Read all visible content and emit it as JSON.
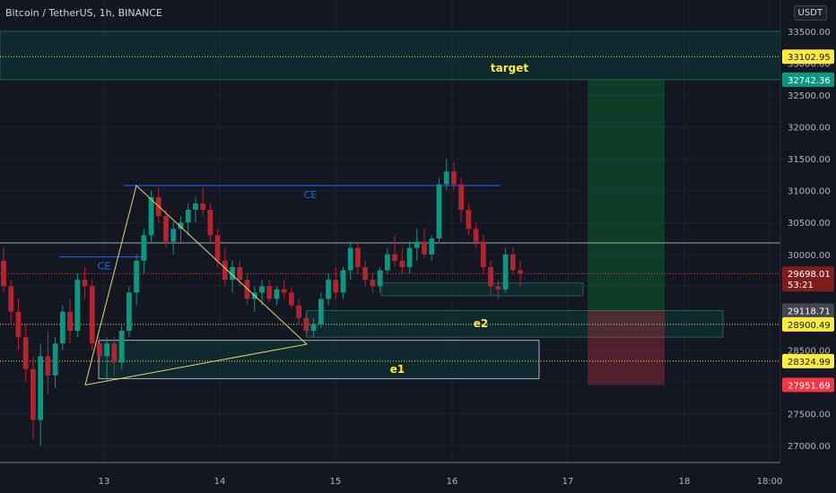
{
  "header": {
    "title": "Bitcoin / TetherUS, 1h, BINANCE",
    "currency": "USDT"
  },
  "chart_data": {
    "type": "candlestick",
    "x_ticks": [
      "13",
      "14",
      "15",
      "16",
      "17",
      "18",
      "18:00"
    ],
    "y_ticks": [
      "33500.00",
      "33000.00",
      "32500.00",
      "32000.00",
      "31500.00",
      "31000.00",
      "30500.00",
      "30000.00",
      "29500.00",
      "29000.00",
      "28500.00",
      "28000.00",
      "27500.00",
      "27000.00"
    ],
    "y_tick_values": [
      33500,
      33000,
      32500,
      32000,
      31500,
      31000,
      30500,
      30000,
      29500,
      29000,
      28500,
      28000,
      27500,
      27000
    ],
    "price_labels": [
      {
        "value": 33102.95,
        "text": "33102.95",
        "bg": "#ffeb3b",
        "fg": "#131722"
      },
      {
        "value": 32742.36,
        "text": "32742.36",
        "bg": "#089981",
        "fg": "#ffffff"
      },
      {
        "value": 29698.01,
        "text": "29698.01",
        "sub": "53:21",
        "bg": "#7f1d1d",
        "fg": "#ffffff"
      },
      {
        "value": 29118.71,
        "text": "29118.71",
        "bg": "#434651",
        "fg": "#ffffff"
      },
      {
        "value": 28900.49,
        "text": "28900.49",
        "bg": "#ffeb3b",
        "fg": "#131722"
      },
      {
        "value": 28324.99,
        "text": "28324.99",
        "bg": "#ffeb3b",
        "fg": "#131722"
      },
      {
        "value": 27951.69,
        "text": "27951.69",
        "bg": "#f23645",
        "fg": "#ffffff"
      }
    ],
    "zones": [
      {
        "label": "target",
        "price_top": 33500,
        "price_bottom": 32742.36
      },
      {
        "label": "e2",
        "price_top": 29118.71,
        "price_bottom": 28700
      },
      {
        "label": "e1",
        "price_top": 28650,
        "price_bottom": 28050
      },
      {
        "label": "",
        "price_top": 29550,
        "price_bottom": 29350
      }
    ],
    "annotations": [
      "CE",
      "CE",
      "target",
      "e2",
      "e1"
    ],
    "lines": {
      "ce_upper": 31080,
      "ce_lower": 29960,
      "horizontal_white": 30180,
      "current_price": 29698.01,
      "target_line": 33102.95,
      "e2_line": 28900.49,
      "e1_line": 28324.99
    },
    "position": {
      "entry": 29118.71,
      "target": 32742.36,
      "stop": 27951.69
    },
    "candles": [
      [
        29900,
        30100,
        29400,
        29500
      ],
      [
        29500,
        29600,
        28900,
        29100
      ],
      [
        29100,
        29300,
        28500,
        28700
      ],
      [
        28700,
        28900,
        28000,
        28200
      ],
      [
        28200,
        28400,
        27100,
        27400
      ],
      [
        27400,
        28600,
        27000,
        28400
      ],
      [
        28400,
        28800,
        27800,
        28100
      ],
      [
        28100,
        28700,
        27900,
        28600
      ],
      [
        28600,
        29200,
        28500,
        29100
      ],
      [
        29100,
        29300,
        28600,
        28800
      ],
      [
        28800,
        29700,
        28700,
        29600
      ],
      [
        29600,
        29800,
        29300,
        29500
      ],
      [
        29500,
        29600,
        28500,
        28600
      ],
      [
        28600,
        28700,
        28300,
        28400
      ],
      [
        28400,
        28700,
        28000,
        28600
      ],
      [
        28600,
        28700,
        28100,
        28300
      ],
      [
        28300,
        28900,
        28200,
        28800
      ],
      [
        28800,
        29500,
        28700,
        29400
      ],
      [
        29400,
        30000,
        29200,
        29900
      ],
      [
        29900,
        30400,
        29700,
        30300
      ],
      [
        30300,
        31000,
        30200,
        30900
      ],
      [
        30900,
        31050,
        30500,
        30600
      ],
      [
        30600,
        30700,
        30100,
        30200
      ],
      [
        30200,
        30500,
        30000,
        30400
      ],
      [
        30400,
        30600,
        30200,
        30500
      ],
      [
        30500,
        30800,
        30300,
        30700
      ],
      [
        30700,
        30900,
        30500,
        30800
      ],
      [
        30800,
        31050,
        30600,
        30700
      ],
      [
        30700,
        30800,
        30200,
        30300
      ],
      [
        30300,
        30400,
        29800,
        29900
      ],
      [
        29900,
        30100,
        29500,
        29600
      ],
      [
        29600,
        29900,
        29400,
        29800
      ],
      [
        29800,
        29900,
        29500,
        29600
      ],
      [
        29600,
        29700,
        29200,
        29300
      ],
      [
        29300,
        29500,
        29100,
        29400
      ],
      [
        29400,
        29600,
        29200,
        29500
      ],
      [
        29500,
        29600,
        29250,
        29300
      ],
      [
        29300,
        29500,
        29200,
        29450
      ],
      [
        29450,
        29600,
        29300,
        29400
      ],
      [
        29400,
        29500,
        29150,
        29200
      ],
      [
        29200,
        29300,
        28900,
        29000
      ],
      [
        29000,
        29100,
        28700,
        28800
      ],
      [
        28800,
        29000,
        28700,
        28900
      ],
      [
        28900,
        29400,
        28850,
        29300
      ],
      [
        29300,
        29700,
        29200,
        29600
      ],
      [
        29600,
        29800,
        29300,
        29400
      ],
      [
        29400,
        29800,
        29300,
        29750
      ],
      [
        29750,
        30200,
        29600,
        30100
      ],
      [
        30100,
        30200,
        29700,
        29800
      ],
      [
        29800,
        29900,
        29500,
        29600
      ],
      [
        29600,
        29700,
        29400,
        29500
      ],
      [
        29500,
        29800,
        29400,
        29750
      ],
      [
        29750,
        30100,
        29700,
        30000
      ],
      [
        30000,
        30300,
        29800,
        29900
      ],
      [
        29900,
        30100,
        29700,
        29800
      ],
      [
        29800,
        30200,
        29700,
        30100
      ],
      [
        30100,
        30400,
        29900,
        30200
      ],
      [
        30200,
        30400,
        29950,
        30000
      ],
      [
        30000,
        30300,
        29900,
        30250
      ],
      [
        30250,
        31200,
        30200,
        31100
      ],
      [
        31100,
        31500,
        31000,
        31300
      ],
      [
        31300,
        31450,
        31000,
        31100
      ],
      [
        31100,
        31200,
        30500,
        30700
      ],
      [
        30700,
        30800,
        30300,
        30400
      ],
      [
        30400,
        30500,
        30100,
        30200
      ],
      [
        30200,
        30300,
        29700,
        29800
      ],
      [
        29800,
        29900,
        29350,
        29500
      ],
      [
        29500,
        29600,
        29300,
        29450
      ],
      [
        29450,
        30100,
        29400,
        30000
      ],
      [
        30000,
        30100,
        29700,
        29750
      ],
      [
        29750,
        29900,
        29500,
        29698.01
      ]
    ]
  }
}
